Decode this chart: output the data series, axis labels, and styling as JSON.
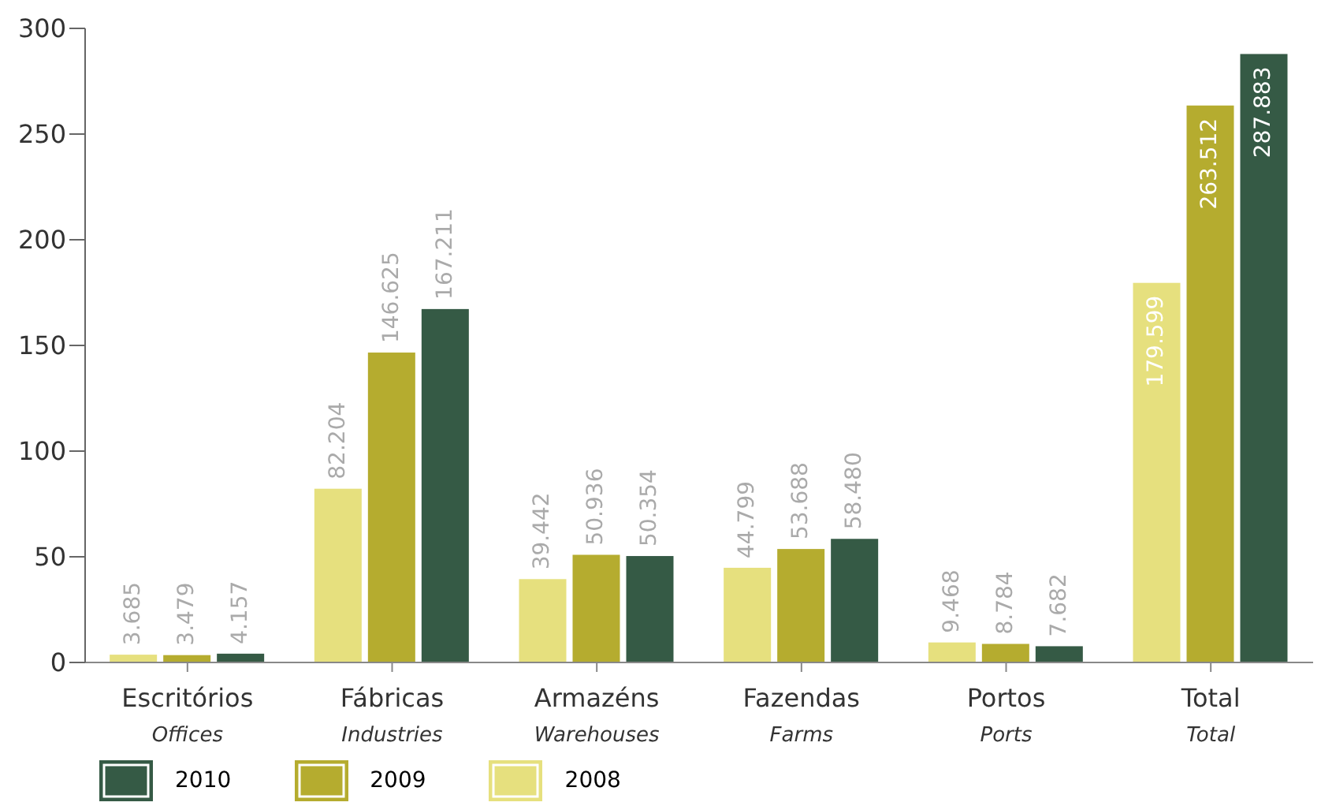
{
  "chart_data": {
    "type": "bar",
    "categories": [
      "Escritórios\nOffices",
      "Fábricas\nIndustries",
      "Armazéns\nWarehouses",
      "Fazendas\nFarms",
      "Portos\nPorts",
      "Total\nTotal"
    ],
    "series": [
      {
        "name": "2008",
        "color": "#e6e07e",
        "values": [
          3.685,
          82.204,
          39.442,
          44.799,
          9.468,
          179.599
        ],
        "value_labels": [
          "3.685",
          "82.204",
          "39.442",
          "44.799",
          "9.468",
          "179.599"
        ]
      },
      {
        "name": "2009",
        "color": "#b5ac2f",
        "values": [
          3.479,
          146.625,
          50.936,
          53.688,
          8.784,
          263.512
        ],
        "value_labels": [
          "3.479",
          "146.625",
          "50.936",
          "53.688",
          "8.784",
          "263.512"
        ]
      },
      {
        "name": "2010",
        "color": "#355a45",
        "values": [
          4.157,
          167.211,
          50.354,
          58.48,
          7.682,
          287.883
        ],
        "value_labels": [
          "4.157",
          "167.211",
          "50.354",
          "58.480",
          "7.682",
          "287.883"
        ]
      }
    ],
    "ylim": [
      0,
      300
    ],
    "yticks": [
      0,
      50,
      100,
      150,
      200,
      250,
      300
    ],
    "grid": false,
    "legend": "bottom left"
  }
}
